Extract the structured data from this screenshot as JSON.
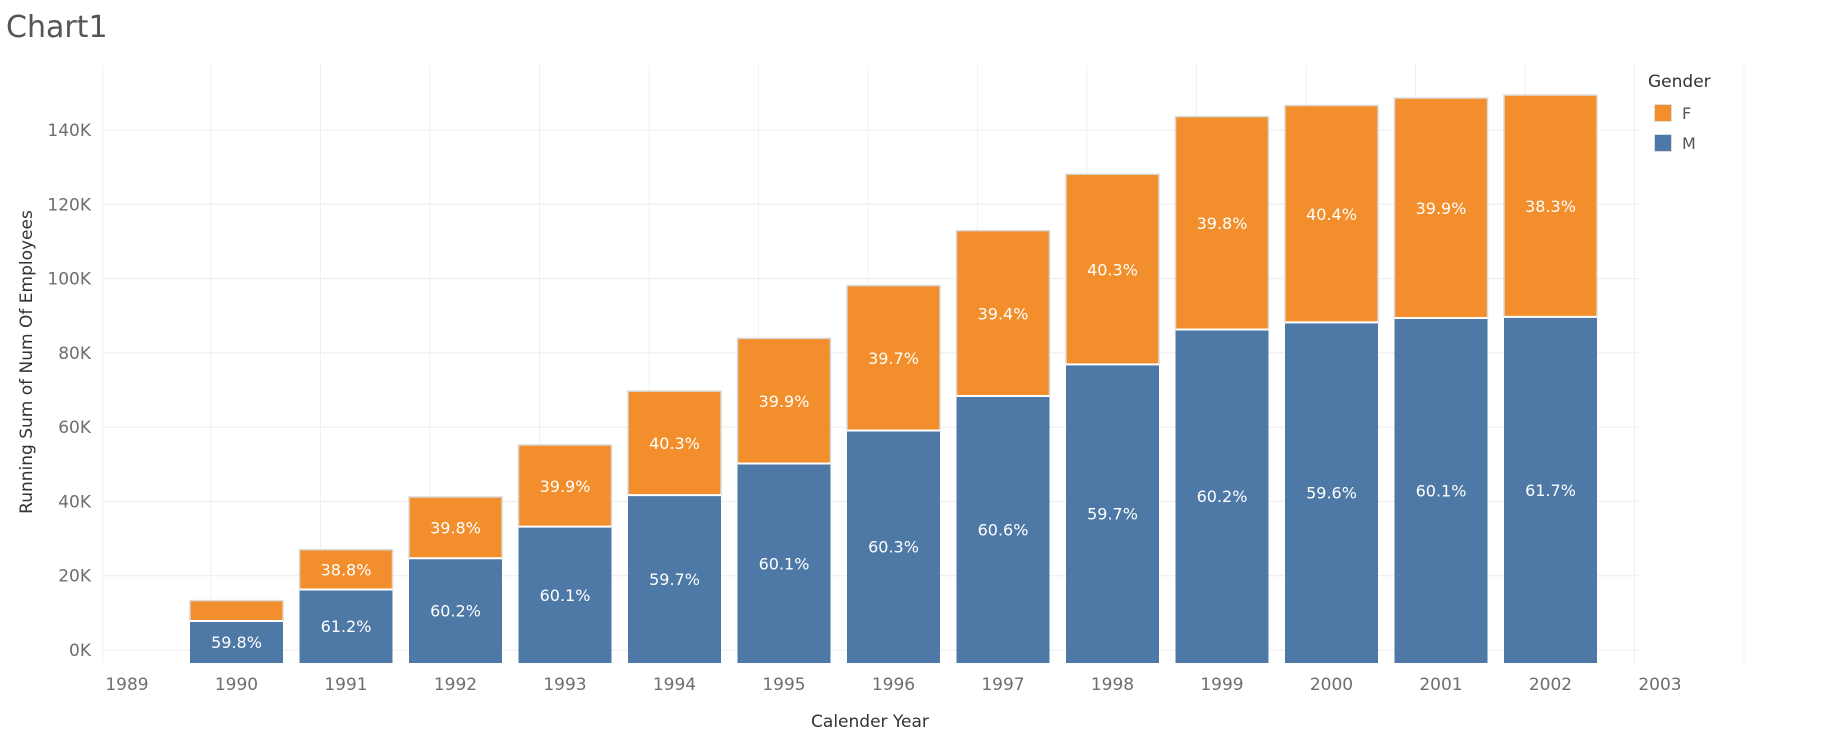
{
  "chart_data": {
    "type": "bar",
    "stacked": true,
    "title": "Chart1",
    "xlabel": "Calender Year",
    "ylabel": "Running Sum of Num Of Employees",
    "categories": [
      "1990",
      "1991",
      "1992",
      "1993",
      "1994",
      "1995",
      "1996",
      "1997",
      "1998",
      "1999",
      "2000",
      "2001",
      "2002"
    ],
    "x_ticks": [
      "1989",
      "1990",
      "1991",
      "1992",
      "1993",
      "1994",
      "1995",
      "1996",
      "1997",
      "1998",
      "1999",
      "2000",
      "2001",
      "2002",
      "2003"
    ],
    "y_ticks": [
      "0K",
      "20K",
      "40K",
      "60K",
      "80K",
      "100K",
      "120K",
      "140K"
    ],
    "ylim": [
      0,
      150000
    ],
    "grid": true,
    "legend_title": "Gender",
    "legend_position": "top-right",
    "series": [
      {
        "name": "M",
        "color": "#4e79a7",
        "values": [
          7800,
          16300,
          24700,
          33200,
          41700,
          50200,
          59100,
          68400,
          76900,
          86300,
          88200,
          89400,
          89700
        ],
        "labels": [
          "59.8%",
          "61.2%",
          "60.2%",
          "60.1%",
          "59.7%",
          "60.1%",
          "60.3%",
          "60.6%",
          "59.7%",
          "60.2%",
          "59.6%",
          "60.1%",
          "61.7%"
        ]
      },
      {
        "name": "F",
        "color": "#f28e2b",
        "values": [
          5500,
          10700,
          16500,
          22000,
          28000,
          33700,
          39000,
          44500,
          51200,
          57300,
          58400,
          59200,
          59700
        ],
        "labels": [
          "",
          "38.8%",
          "39.8%",
          "39.9%",
          "40.3%",
          "39.9%",
          "39.7%",
          "39.4%",
          "40.3%",
          "39.8%",
          "40.4%",
          "39.9%",
          "38.3%"
        ]
      }
    ]
  },
  "legend": {
    "title": "Gender",
    "items": [
      {
        "label": "F",
        "color": "#f28e2b"
      },
      {
        "label": "M",
        "color": "#4e79a7"
      }
    ]
  }
}
